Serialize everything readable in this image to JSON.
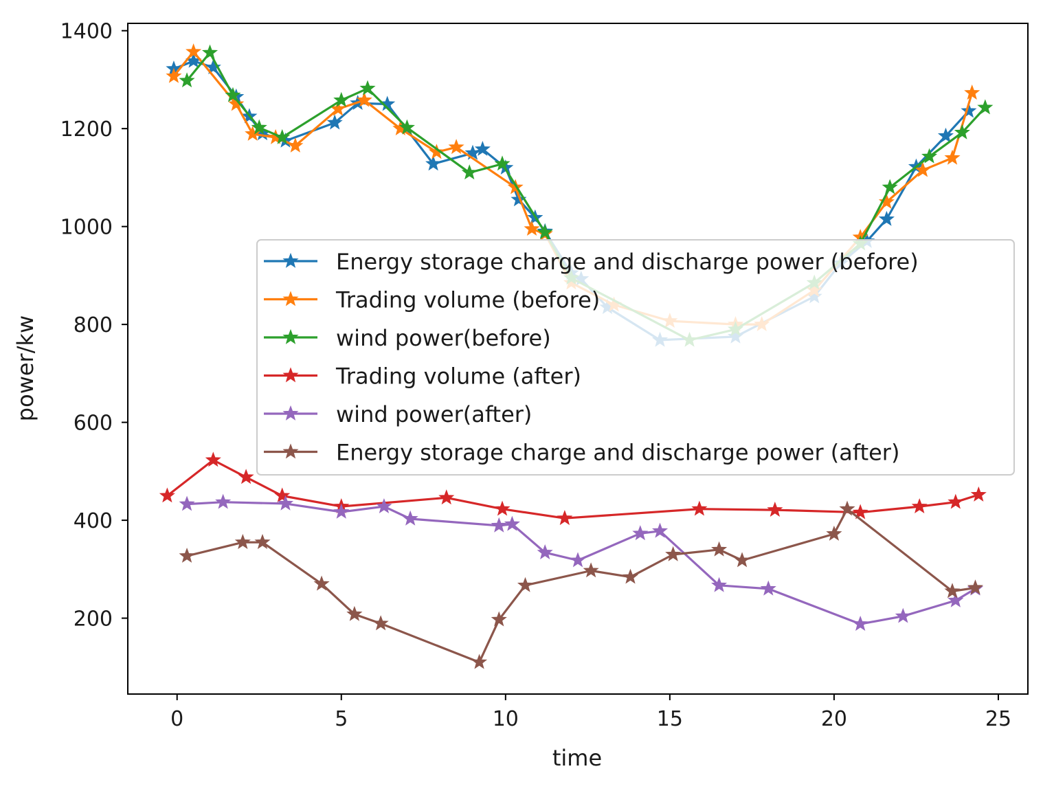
{
  "chart_data": {
    "type": "line",
    "title": "",
    "xlabel": "time",
    "ylabel": "power/kw",
    "xlim": [
      -1.5,
      25.9
    ],
    "ylim": [
      45,
      1415
    ],
    "xticks": [
      0,
      5,
      10,
      15,
      20,
      25
    ],
    "yticks": [
      200,
      400,
      600,
      800,
      1000,
      1200,
      1400
    ],
    "marker": "star",
    "grid": false,
    "legend_position": "center-right",
    "series": [
      {
        "name": "Energy storage charge and discharge power (before)",
        "color": "#1f77b4",
        "x": [
          -0.1,
          0.5,
          1.1,
          1.8,
          2.2,
          2.6,
          3.3,
          4.8,
          5.5,
          6.4,
          7.8,
          9.0,
          9.3,
          10.0,
          10.4,
          10.9,
          11.2,
          12.0,
          12.3,
          13.1,
          14.7,
          17.0,
          19.4,
          20.2,
          21.0,
          21.6,
          22.5,
          23.4,
          24.1
        ],
        "y": [
          1322,
          1338,
          1325,
          1265,
          1225,
          1190,
          1175,
          1212,
          1252,
          1250,
          1128,
          1150,
          1158,
          1120,
          1055,
          1018,
          990,
          905,
          893,
          835,
          768,
          775,
          857,
          925,
          970,
          1015,
          1122,
          1185,
          1236
        ]
      },
      {
        "name": "Trading volume (before)",
        "color": "#ff7f0e",
        "x": [
          -0.1,
          0.5,
          1.8,
          2.3,
          3.0,
          3.6,
          4.9,
          5.7,
          6.8,
          7.9,
          8.5,
          10.3,
          10.8,
          11.2,
          12.0,
          13.3,
          15.0,
          17.0,
          17.8,
          19.4,
          20.8,
          21.6,
          22.7,
          23.6,
          24.2
        ],
        "y": [
          1307,
          1357,
          1250,
          1189,
          1182,
          1165,
          1240,
          1258,
          1200,
          1152,
          1162,
          1080,
          995,
          985,
          885,
          840,
          807,
          800,
          800,
          870,
          978,
          1050,
          1115,
          1140,
          1273
        ]
      },
      {
        "name": "wind power(before)",
        "color": "#2ca02c",
        "x": [
          0.3,
          1.0,
          1.7,
          2.5,
          3.2,
          5.0,
          5.8,
          7.0,
          8.9,
          9.9,
          11.2,
          12.0,
          15.6,
          17.0,
          19.4,
          20.8,
          21.7,
          22.9,
          23.9,
          24.6
        ],
        "y": [
          1298,
          1355,
          1268,
          1202,
          1182,
          1258,
          1282,
          1202,
          1110,
          1128,
          988,
          895,
          768,
          790,
          885,
          965,
          1080,
          1143,
          1192,
          1243
        ]
      },
      {
        "name": "Trading volume (after)",
        "color": "#d62728",
        "x": [
          -0.3,
          1.1,
          2.1,
          3.2,
          5.0,
          8.2,
          9.9,
          11.8,
          15.9,
          18.2,
          20.8,
          22.6,
          23.7,
          24.4
        ],
        "y": [
          450,
          523,
          488,
          450,
          428,
          446,
          423,
          404,
          423,
          421,
          416,
          428,
          437,
          452
        ]
      },
      {
        "name": "wind power(after)",
        "color": "#9467bd",
        "x": [
          0.3,
          1.4,
          3.3,
          5.0,
          6.3,
          7.1,
          9.8,
          10.2,
          11.2,
          12.2,
          14.1,
          14.7,
          16.5,
          18.0,
          20.8,
          22.1,
          23.7,
          24.3
        ],
        "y": [
          433,
          437,
          434,
          417,
          428,
          403,
          389,
          392,
          334,
          318,
          373,
          378,
          267,
          260,
          188,
          204,
          236,
          260
        ]
      },
      {
        "name": "Energy storage charge and discharge power (after)",
        "color": "#8c564b",
        "x": [
          0.3,
          2.0,
          2.6,
          4.4,
          5.4,
          6.2,
          9.2,
          9.8,
          10.6,
          12.6,
          13.8,
          15.1,
          16.5,
          17.2,
          20.0,
          20.4,
          23.6,
          24.3
        ],
        "y": [
          327,
          355,
          355,
          270,
          208,
          189,
          110,
          197,
          267,
          297,
          284,
          330,
          340,
          318,
          372,
          423,
          255,
          262
        ]
      }
    ]
  }
}
